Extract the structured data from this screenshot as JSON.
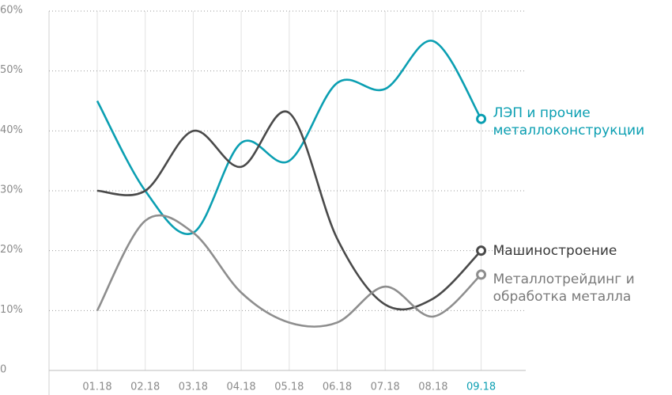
{
  "chart_data": {
    "type": "line",
    "categories": [
      "01.18",
      "02.18",
      "03.18",
      "04.18",
      "05.18",
      "06.18",
      "07.18",
      "08.18",
      "09.18"
    ],
    "series": [
      {
        "name": "ЛЭП и прочие металлоконструкции",
        "color": "#0b9fb2",
        "values": [
          45,
          30,
          23,
          38,
          35,
          48,
          47,
          55,
          42
        ]
      },
      {
        "name": "Машиностроение",
        "color": "#4a4a4a",
        "values": [
          30,
          30,
          40,
          34,
          43,
          22,
          11,
          12,
          20
        ]
      },
      {
        "name": "Металлотрейдинг и обработка металла",
        "color": "#8e8e8e",
        "values": [
          10,
          25,
          23,
          13,
          8,
          8,
          14,
          9,
          16
        ]
      }
    ],
    "ylim": [
      0,
      60
    ],
    "yticks": [
      0,
      {
        "value": 10,
        "label": "10%"
      },
      {
        "value": 20,
        "label": "20%"
      },
      {
        "value": 30,
        "label": "30%"
      },
      {
        "value": 40,
        "label": "40%"
      },
      {
        "value": 50,
        "label": "50%"
      },
      {
        "value": 60,
        "label": "60%"
      }
    ],
    "grid": true
  }
}
